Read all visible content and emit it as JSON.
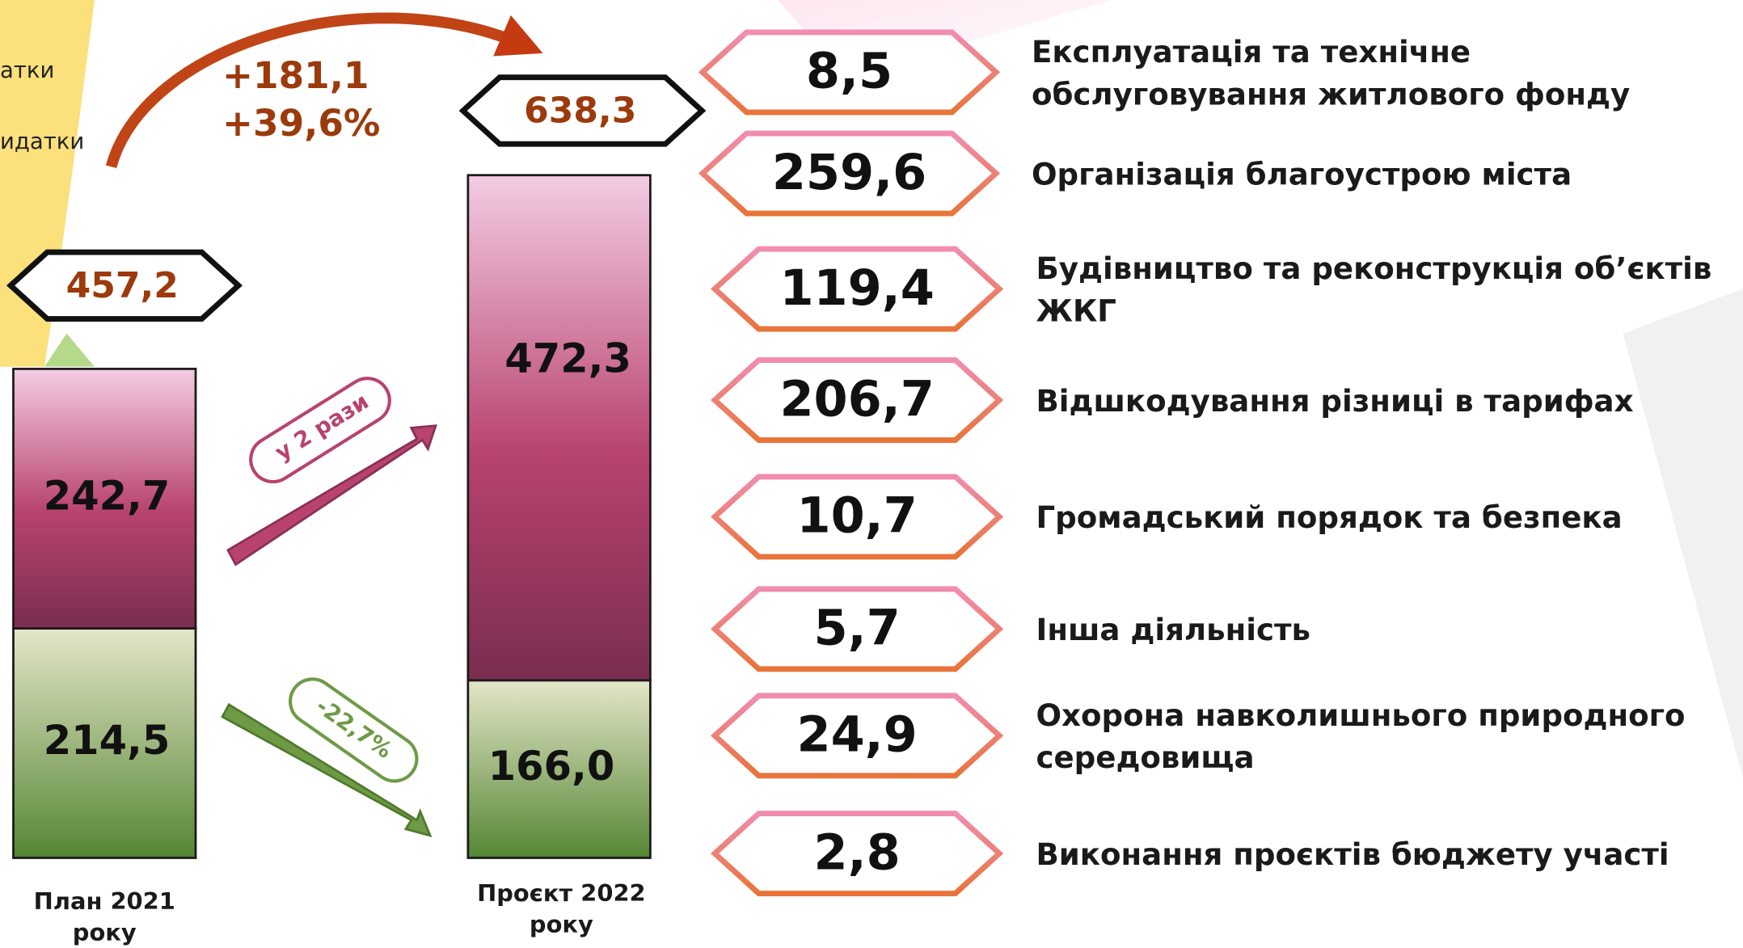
{
  "chart_data": {
    "type": "bar",
    "categories": [
      "План 2021 року",
      "Проєкт 2022 року"
    ],
    "series": [
      {
        "color": "#5f8f38",
        "values": [
          214.5,
          166.0
        ],
        "value_labels": [
          "214,5",
          "166,0"
        ]
      },
      {
        "color": "#b8436f",
        "values": [
          242.7,
          472.3
        ],
        "value_labels": [
          "242,7",
          "472,3"
        ]
      }
    ],
    "ylim": [
      0,
      800
    ],
    "totals": [
      "457,2",
      "638,3"
    ],
    "change_total": [
      "+181,1",
      "+39,6%"
    ],
    "change_series": [
      "-22,7%",
      "у 2 рази"
    ]
  },
  "side_text": [
    "атки",
    "идатки"
  ],
  "breakdown": [
    {
      "value": "8,5",
      "text": "Експлуатація та технічне обслуговування житлового фонду"
    },
    {
      "value": "259,6",
      "text": "Організація благоустрою міста"
    },
    {
      "value": "119,4",
      "text": "Будівництво та реконструкція об’єктів ЖКГ"
    },
    {
      "value": "206,7",
      "text": "Відшкодування різниці в тарифах"
    },
    {
      "value": "10,7",
      "text": "Громадський порядок та безпека"
    },
    {
      "value": "5,7",
      "text": "Інша діяльність"
    },
    {
      "value": "24,9",
      "text": "Охорона навколишнього природного середовища"
    },
    {
      "value": "2,8",
      "text": "Виконання проєктів бюджету участі"
    }
  ]
}
